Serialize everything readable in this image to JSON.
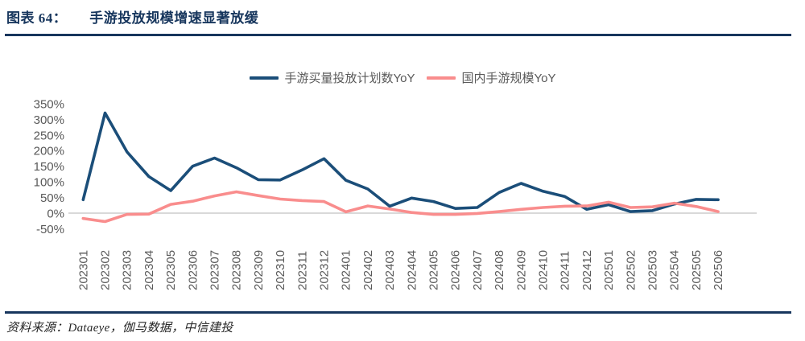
{
  "header": {
    "label": "图表 64：",
    "title": "手游投放规模增速显著放缓"
  },
  "footer": {
    "source": "资料来源：Dataeye，伽马数据，中信建投"
  },
  "colors": {
    "title_navy": "#17365D",
    "rule_navy": "#17365D",
    "axis_text": "#595959",
    "zero_line": "#D9D9D9",
    "series_navy": "#1B4E79",
    "series_pink": "#F98D8D",
    "background": "#FFFFFF"
  },
  "chart_data": {
    "type": "line",
    "title": "",
    "xlabel": "",
    "ylabel": "",
    "grid": false,
    "legend_position": "top",
    "ylim": [
      -50,
      350
    ],
    "ytick_step": 50,
    "yticks": [
      {
        "label": "350%",
        "value": 350
      },
      {
        "label": "300%",
        "value": 300
      },
      {
        "label": "250%",
        "value": 250
      },
      {
        "label": "200%",
        "value": 200
      },
      {
        "label": "150%",
        "value": 150
      },
      {
        "label": "100%",
        "value": 100
      },
      {
        "label": "50%",
        "value": 50
      },
      {
        "label": "0%",
        "value": 0
      },
      {
        "label": "-50%",
        "value": -50
      }
    ],
    "categories": [
      "202301",
      "202302",
      "202303",
      "202304",
      "202305",
      "202306",
      "202307",
      "202308",
      "202309",
      "202310",
      "202311",
      "202312",
      "202401",
      "202402",
      "202403",
      "202404",
      "202405",
      "202406",
      "202407",
      "202408",
      "202409",
      "202410",
      "202411",
      "202412",
      "202501",
      "202502",
      "202503",
      "202504",
      "202505",
      "202506"
    ],
    "series": [
      {
        "name": "手游买量投放计划数YoY",
        "slug": "plan-count-yoy",
        "color": "#1B4E79",
        "values": [
          43,
          320,
          196,
          117,
          72,
          150,
          176,
          145,
          107,
          106,
          138,
          174,
          105,
          77,
          22,
          48,
          37,
          15,
          18,
          66,
          95,
          70,
          53,
          12,
          27,
          5,
          8,
          29,
          44,
          43
        ]
      },
      {
        "name": "国内手游规模YoY",
        "slug": "domestic-scale-yoy",
        "color": "#F98D8D",
        "values": [
          -17,
          -27,
          -4,
          -3,
          28,
          38,
          55,
          68,
          56,
          45,
          40,
          37,
          4,
          23,
          13,
          2,
          -4,
          -4,
          -1,
          5,
          12,
          18,
          22,
          23,
          35,
          18,
          20,
          32,
          21,
          5
        ]
      }
    ]
  }
}
